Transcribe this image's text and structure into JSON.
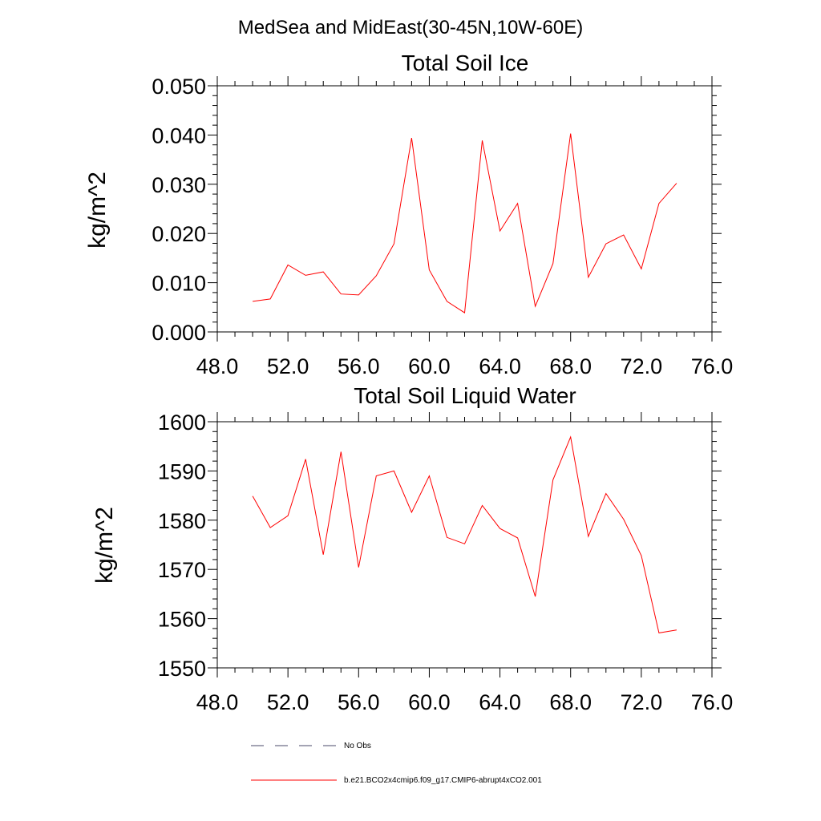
{
  "page": {
    "title": "MedSea and MidEast(30-45N,10W-60E)"
  },
  "legend": {
    "entries": [
      {
        "label": "No Obs",
        "color": "#4a4a6a",
        "dash": "dashed"
      },
      {
        "label": "b.e21.BCO2x4cmip6.f09_g17.CMIP6-abrupt4xCO2.001",
        "color": "#ff0000",
        "dash": "solid"
      }
    ]
  },
  "chart_data": [
    {
      "type": "line",
      "title": "Total Soil Ice",
      "ylabel": "kg/m^2",
      "xlim": [
        48,
        76
      ],
      "ylim": [
        0,
        0.05
      ],
      "xticks": [
        48,
        52,
        56,
        60,
        64,
        68,
        72,
        76
      ],
      "xtick_labels": [
        "48.0",
        "52.0",
        "56.0",
        "60.0",
        "64.0",
        "68.0",
        "72.0",
        "76.0"
      ],
      "yticks": [
        0,
        0.01,
        0.02,
        0.03,
        0.04,
        0.05
      ],
      "ytick_labels": [
        "0.000",
        "0.010",
        "0.020",
        "0.030",
        "0.040",
        "0.050"
      ],
      "series": [
        {
          "color": "#ff0000",
          "x": [
            50,
            51,
            52,
            53,
            54,
            55,
            56,
            57,
            58,
            59,
            60,
            61,
            62,
            63,
            64,
            65,
            66,
            67,
            68,
            69,
            70,
            71,
            72,
            73,
            74
          ],
          "y": [
            0.0062,
            0.0067,
            0.0136,
            0.0115,
            0.0122,
            0.0077,
            0.0075,
            0.0114,
            0.0179,
            0.0394,
            0.0126,
            0.0062,
            0.0039,
            0.0389,
            0.0205,
            0.0261,
            0.0052,
            0.0139,
            0.0403,
            0.0111,
            0.0179,
            0.0197,
            0.0128,
            0.0261,
            0.0302
          ]
        }
      ]
    },
    {
      "type": "line",
      "title": "Total Soil Liquid Water",
      "ylabel": "kg/m^2",
      "xlim": [
        48,
        76
      ],
      "ylim": [
        1550,
        1600
      ],
      "xticks": [
        48,
        52,
        56,
        60,
        64,
        68,
        72,
        76
      ],
      "xtick_labels": [
        "48.0",
        "52.0",
        "56.0",
        "60.0",
        "64.0",
        "68.0",
        "72.0",
        "76.0"
      ],
      "yticks": [
        1550,
        1560,
        1570,
        1580,
        1590,
        1600
      ],
      "ytick_labels": [
        "1550",
        "1560",
        "1570",
        "1580",
        "1590",
        "1600"
      ],
      "series": [
        {
          "color": "#ff0000",
          "x": [
            50,
            51,
            52,
            53,
            54,
            55,
            56,
            57,
            58,
            59,
            60,
            61,
            62,
            63,
            64,
            65,
            66,
            67,
            68,
            69,
            70,
            71,
            72,
            73,
            74
          ],
          "y": [
            1584.9,
            1578.5,
            1580.9,
            1592.4,
            1573.0,
            1593.9,
            1570.4,
            1589.0,
            1590.0,
            1581.6,
            1589.0,
            1576.5,
            1575.2,
            1583.0,
            1578.3,
            1576.4,
            1564.5,
            1588.2,
            1596.9,
            1576.7,
            1585.4,
            1580.2,
            1572.8,
            1557.1,
            1557.7
          ]
        }
      ]
    }
  ]
}
